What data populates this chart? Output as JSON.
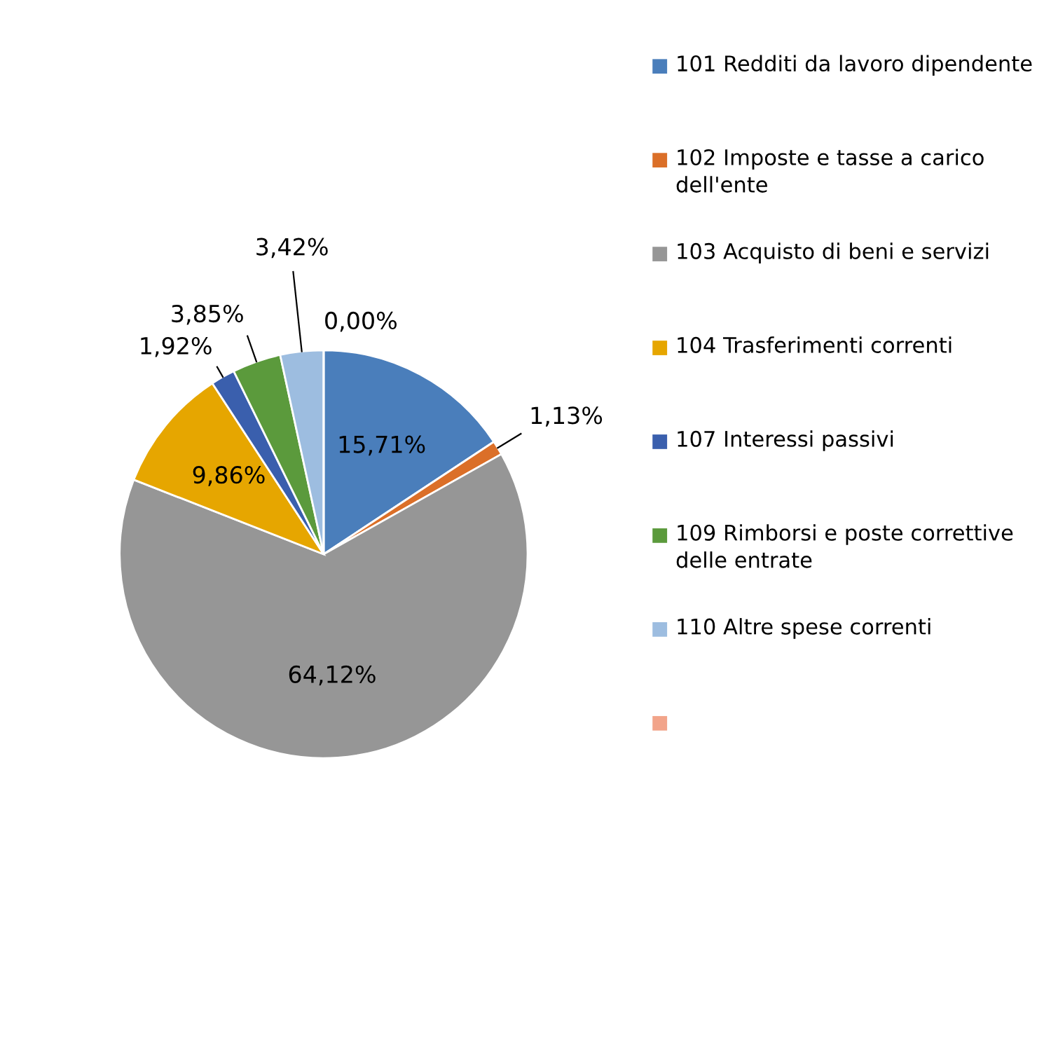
{
  "chart_data": {
    "type": "pie",
    "categories": [
      "101 Redditi da lavoro dipendente",
      "102 Imposte e tasse a carico dell'ente",
      "103 Acquisto di beni e servizi",
      "104 Trasferimenti correnti",
      "107 Interessi passivi",
      "109 Rimborsi e poste correttive delle entrate",
      "110 Altre spese correnti",
      null
    ],
    "values": [
      15.71,
      1.13,
      64.12,
      9.86,
      1.92,
      3.85,
      3.42,
      0.0
    ],
    "value_labels": [
      "15,71%",
      "1,13%",
      "64,12%",
      "9,86%",
      "1,92%",
      "3,85%",
      "3,42%",
      "0,00%"
    ],
    "colors": [
      "#4a7ebb",
      "#db6f28",
      "#969696",
      "#e6a600",
      "#3a5fad",
      "#5b9a3c",
      "#9dbde0",
      "#f2a48a"
    ],
    "legend": "right"
  }
}
